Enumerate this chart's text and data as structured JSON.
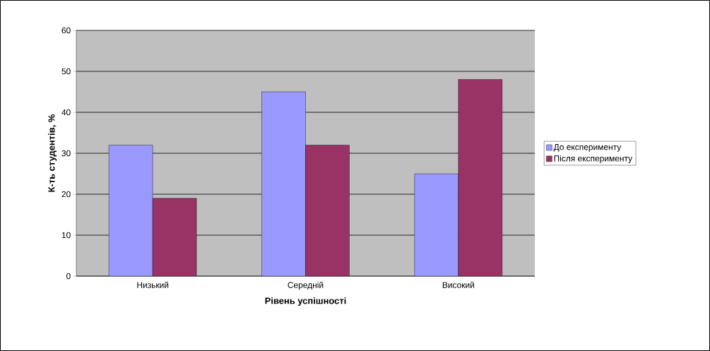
{
  "chart_data": {
    "type": "bar",
    "xlabel": "Рівень успішності",
    "ylabel": "К-ть студентів, %",
    "categories": [
      "Низький",
      "Середній",
      "Високий"
    ],
    "series": [
      {
        "name": "До експерименту",
        "color": "#9999ff",
        "values": [
          32,
          45,
          25
        ]
      },
      {
        "name": "Після експерименту",
        "color": "#993366",
        "values": [
          19,
          32,
          48
        ]
      }
    ],
    "ylim": [
      0,
      60
    ],
    "yticks": [
      0,
      10,
      20,
      30,
      40,
      50,
      60
    ],
    "grid": "y",
    "legend": "right"
  }
}
